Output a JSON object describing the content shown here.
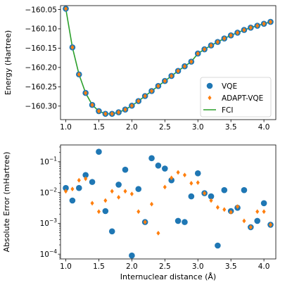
{
  "colors": {
    "vqe": "#1f77b4",
    "adapt": "#ff7f0e",
    "fci": "#2ca02c"
  },
  "chart_data": [
    {
      "type": "line",
      "xlabel": "",
      "ylabel": "Energy (Hartree)",
      "xlim": [
        0.92,
        4.18
      ],
      "ylim": [
        -160.335,
        -160.04
      ],
      "xticks": [
        1.0,
        1.5,
        2.0,
        2.5,
        3.0,
        3.5,
        4.0
      ],
      "xtick_labels": [
        "1.0",
        "1.5",
        "2.0",
        "2.5",
        "3.0",
        "3.5",
        "4.0"
      ],
      "yticks": [
        -160.05,
        -160.1,
        -160.15,
        -160.2,
        -160.25,
        -160.3
      ],
      "ytick_labels": [
        "−160.05",
        "−160.10",
        "−160.15",
        "−160.20",
        "−160.25",
        "−160.30"
      ],
      "legend": {
        "placement": "lower-right",
        "entries": [
          "VQE",
          "ADAPT-VQE",
          "FCI"
        ]
      },
      "x": [
        1.0,
        1.1,
        1.2,
        1.3,
        1.4,
        1.5,
        1.6,
        1.7,
        1.8,
        1.9,
        2.0,
        2.1,
        2.2,
        2.3,
        2.4,
        2.5,
        2.6,
        2.7,
        2.8,
        2.9,
        3.0,
        3.1,
        3.2,
        3.3,
        3.4,
        3.5,
        3.6,
        3.7,
        3.8,
        3.9,
        4.0,
        4.1
      ],
      "series": [
        {
          "name": "VQE",
          "marker": "circle",
          "values": [
            -160.048,
            -160.148,
            -160.218,
            -160.266,
            -160.297,
            -160.313,
            -160.32,
            -160.32,
            -160.316,
            -160.309,
            -160.299,
            -160.287,
            -160.274,
            -160.261,
            -160.248,
            -160.235,
            -160.222,
            -160.209,
            -160.197,
            -160.185,
            -160.164,
            -160.153,
            -160.143,
            -160.134,
            -160.125,
            -160.117,
            -160.11,
            -160.103,
            -160.097,
            -160.092,
            -160.087,
            -160.082
          ]
        },
        {
          "name": "ADAPT-VQE",
          "marker": "diamond",
          "values": [
            -160.048,
            -160.148,
            -160.218,
            -160.266,
            -160.297,
            -160.313,
            -160.32,
            -160.32,
            -160.316,
            -160.309,
            -160.299,
            -160.287,
            -160.274,
            -160.261,
            -160.248,
            -160.235,
            -160.222,
            -160.209,
            -160.197,
            -160.185,
            -160.164,
            -160.153,
            -160.143,
            -160.134,
            -160.125,
            -160.117,
            -160.11,
            -160.103,
            -160.097,
            -160.092,
            -160.087,
            -160.082
          ]
        },
        {
          "name": "FCI",
          "marker": "line",
          "values": [
            -160.048,
            -160.148,
            -160.218,
            -160.266,
            -160.297,
            -160.313,
            -160.32,
            -160.32,
            -160.316,
            -160.309,
            -160.299,
            -160.287,
            -160.274,
            -160.261,
            -160.248,
            -160.235,
            -160.222,
            -160.209,
            -160.197,
            -160.185,
            -160.164,
            -160.153,
            -160.143,
            -160.134,
            -160.125,
            -160.117,
            -160.11,
            -160.103,
            -160.097,
            -160.092,
            -160.087,
            -160.082
          ]
        }
      ]
    },
    {
      "type": "scatter",
      "xlabel": "Internuclear distance (Å)",
      "ylabel": "Absolute Error (mHartree)",
      "yscale": "log",
      "xlim": [
        0.92,
        4.18
      ],
      "ylim": [
        7e-05,
        0.35
      ],
      "xticks": [
        1.0,
        1.5,
        2.0,
        2.5,
        3.0,
        3.5,
        4.0
      ],
      "xtick_labels": [
        "1.0",
        "1.5",
        "2.0",
        "2.5",
        "3.0",
        "3.5",
        "4.0"
      ],
      "yticks": [
        0.0001,
        0.001,
        0.01,
        0.1
      ],
      "ytick_labels": [
        [
          "10",
          "−4"
        ],
        [
          "10",
          "−3"
        ],
        [
          "10",
          "−2"
        ],
        [
          "10",
          "−1"
        ]
      ],
      "x": [
        1.0,
        1.1,
        1.2,
        1.3,
        1.4,
        1.5,
        1.6,
        1.7,
        1.8,
        1.9,
        2.0,
        2.1,
        2.2,
        2.3,
        2.4,
        2.5,
        2.6,
        2.7,
        2.8,
        2.9,
        3.0,
        3.1,
        3.2,
        3.3,
        3.4,
        3.5,
        3.6,
        3.7,
        3.8,
        3.9,
        4.0,
        4.1
      ],
      "series": [
        {
          "name": "VQE",
          "marker": "circle",
          "values": [
            0.014,
            0.0055,
            0.014,
            0.037,
            0.022,
            0.21,
            0.0025,
            0.00055,
            0.018,
            0.055,
            9e-05,
            0.013,
            0.0011,
            0.13,
            0.075,
            0.06,
            0.025,
            0.0012,
            0.0011,
            0.0075,
            0.042,
            0.0095,
            0.0075,
            0.00019,
            0.012,
            0.0025,
            0.0032,
            0.012,
            0.00075,
            0.0012,
            0.0045,
            0.0009
          ]
        },
        {
          "name": "ADAPT-VQE",
          "marker": "diamond",
          "values": [
            0.011,
            0.013,
            0.025,
            0.028,
            0.0045,
            0.0024,
            0.0055,
            0.011,
            0.007,
            0.011,
            0.009,
            0.0024,
            0.0011,
            0.0042,
            0.00048,
            0.015,
            0.03,
            0.045,
            0.037,
            0.02,
            0.021,
            0.0095,
            0.0055,
            0.0033,
            0.0028,
            0.0023,
            0.0035,
            0.0012,
            0.00075,
            0.0024,
            0.0024,
            0.0009
          ]
        }
      ]
    }
  ]
}
